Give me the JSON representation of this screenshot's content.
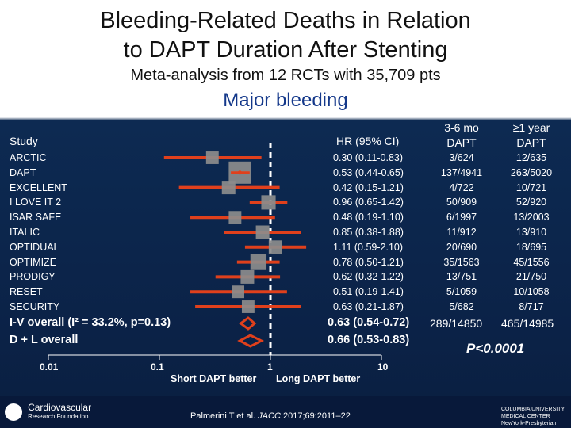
{
  "title": {
    "line1": "Bleeding-Related Deaths in Relation",
    "line2": "to DAPT Duration After Stenting"
  },
  "subtitle": "Meta-analysis from 12 RCTs with 35,709 pts",
  "section_heading": "Major bleeding",
  "columns": {
    "study": "Study",
    "hr": "HR (95% CI)",
    "short_dapt_line1": "3-6 mo",
    "short_dapt_line2": "DAPT",
    "long_dapt_line1": "≥1 year",
    "long_dapt_line2": "DAPT"
  },
  "colors": {
    "background": "#0b2247",
    "ci_line": "#e0401c",
    "point_box": "#8c8c8c",
    "diamond": "#e0401c",
    "text": "#ffffff"
  },
  "chart_data": {
    "type": "forest",
    "title": "Major bleeding",
    "x_scale": "log",
    "xlim": [
      0.01,
      10
    ],
    "x_ticks": [
      "0.01",
      "0.1",
      "1",
      "10"
    ],
    "reference_line": 1,
    "left_caption": "Short DAPT better",
    "right_caption": "Long DAPT better",
    "studies": [
      {
        "name": "ARCTIC",
        "hr": 0.3,
        "lo": 0.11,
        "hi": 0.83,
        "weight": 0.45,
        "hr_text": "0.30 (0.11-0.83)",
        "short_dapt": "3/624",
        "long_dapt": "12/635"
      },
      {
        "name": "DAPT",
        "hr": 0.53,
        "lo": 0.44,
        "hi": 0.65,
        "weight": 1.0,
        "hr_text": "0.53 (0.44-0.65)",
        "short_dapt": "137/4941",
        "long_dapt": "263/5020"
      },
      {
        "name": "EXCELLENT",
        "hr": 0.42,
        "lo": 0.15,
        "hi": 1.21,
        "weight": 0.5,
        "hr_text": "0.42 (0.15-1.21)",
        "short_dapt": "4/722",
        "long_dapt": "10/721"
      },
      {
        "name": "I LOVE IT 2",
        "hr": 0.96,
        "lo": 0.65,
        "hi": 1.42,
        "weight": 0.55,
        "hr_text": "0.96 (0.65-1.42)",
        "short_dapt": "50/909",
        "long_dapt": "52/920"
      },
      {
        "name": "ISAR SAFE",
        "hr": 0.48,
        "lo": 0.19,
        "hi": 1.1,
        "weight": 0.45,
        "hr_text": "0.48 (0.19-1.10)",
        "short_dapt": "6/1997",
        "long_dapt": "13/2003"
      },
      {
        "name": "ITALIC",
        "hr": 0.85,
        "lo": 0.38,
        "hi": 1.88,
        "weight": 0.5,
        "hr_text": "0.85 (0.38-1.88)",
        "short_dapt": "11/912",
        "long_dapt": "13/910"
      },
      {
        "name": "OPTIDUAL",
        "hr": 1.11,
        "lo": 0.59,
        "hi": 2.1,
        "weight": 0.5,
        "hr_text": "1.11 (0.59-2.10)",
        "short_dapt": "20/690",
        "long_dapt": "18/695"
      },
      {
        "name": "OPTIMIZE",
        "hr": 0.78,
        "lo": 0.5,
        "hi": 1.21,
        "weight": 0.65,
        "hr_text": "0.78 (0.50-1.21)",
        "short_dapt": "35/1563",
        "long_dapt": "45/1556"
      },
      {
        "name": "PRODIGY",
        "hr": 0.62,
        "lo": 0.32,
        "hi": 1.22,
        "weight": 0.5,
        "hr_text": "0.62 (0.32-1.22)",
        "short_dapt": "13/751",
        "long_dapt": "21/750"
      },
      {
        "name": "RESET",
        "hr": 0.51,
        "lo": 0.19,
        "hi": 1.41,
        "weight": 0.45,
        "hr_text": "0.51 (0.19-1.41)",
        "short_dapt": "5/1059",
        "long_dapt": "10/1058"
      },
      {
        "name": "SECURITY",
        "hr": 0.63,
        "lo": 0.21,
        "hi": 1.87,
        "weight": 0.45,
        "hr_text": "0.63 (0.21-1.87)",
        "short_dapt": "5/682",
        "long_dapt": "8/717"
      }
    ],
    "overall": [
      {
        "label": "I-V overall (I² = 33.2%, p=0.13)",
        "hr": 0.63,
        "lo": 0.54,
        "hi": 0.72,
        "hr_text": "0.63 (0.54-0.72)"
      },
      {
        "label": "D + L overall",
        "hr": 0.66,
        "lo": 0.53,
        "hi": 0.83,
        "hr_text": "0.66 (0.53-0.83)"
      }
    ],
    "totals": {
      "short_dapt": "289/14850",
      "long_dapt": "465/14985"
    },
    "p_value": "P<0.0001"
  },
  "footer": {
    "logo_left_line1": "Cardiovascular",
    "logo_left_line2": "Research Foundation",
    "citation_author": "Palmerini T et al. ",
    "citation_journal": "JACC",
    "citation_ref": " 2017;69:2011–22",
    "logo_right_line1": "COLUMBIA UNIVERSITY",
    "logo_right_line2": "MEDICAL CENTER",
    "logo_right_line3": "NewYork-Presbyterian"
  }
}
